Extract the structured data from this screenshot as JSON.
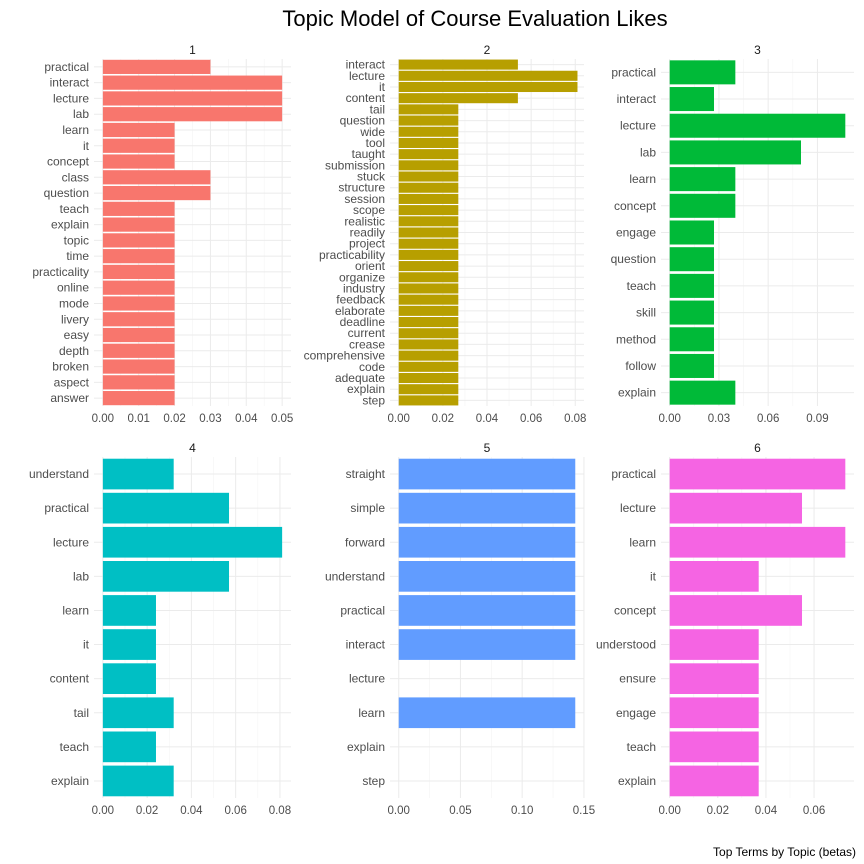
{
  "title": "Topic Model of Course Evaluation Likes",
  "caption": "Top Terms by Topic (betas)",
  "chart_data": {
    "type": "bar",
    "orientation": "horizontal",
    "facets": [
      {
        "label": "1",
        "color": "#F8766D",
        "xlim": [
          0,
          0.05
        ],
        "ticks": [
          0,
          0.01,
          0.02,
          0.03,
          0.04,
          0.05
        ],
        "tick_labels": [
          "0.00",
          "0.01",
          "0.02",
          "0.03",
          "0.04",
          "0.05"
        ],
        "terms": [
          "practical",
          "interact",
          "lecture",
          "lab",
          "learn",
          "it",
          "concept",
          "class",
          "question",
          "teach",
          "explain",
          "topic",
          "time",
          "practicality",
          "online",
          "mode",
          "livery",
          "easy",
          "depth",
          "broken",
          "aspect",
          "answer"
        ],
        "values": [
          0.03,
          0.05,
          0.05,
          0.05,
          0.02,
          0.02,
          0.02,
          0.03,
          0.03,
          0.02,
          0.02,
          0.02,
          0.02,
          0.02,
          0.02,
          0.02,
          0.02,
          0.02,
          0.02,
          0.02,
          0.02,
          0.02
        ]
      },
      {
        "label": "2",
        "color": "#B79F00",
        "xlim": [
          0,
          0.08
        ],
        "ticks": [
          0,
          0.02,
          0.04,
          0.06,
          0.08
        ],
        "tick_labels": [
          "0.00",
          "0.02",
          "0.04",
          "0.06",
          "0.08"
        ],
        "terms": [
          "interact",
          "lecture",
          "it",
          "content",
          "tail",
          "question",
          "wide",
          "tool",
          "taught",
          "submission",
          "stuck",
          "structure",
          "session",
          "scope",
          "realistic",
          "readily",
          "project",
          "practicability",
          "orient",
          "organize",
          "industry",
          "feedback",
          "elaborate",
          "deadline",
          "current",
          "crease",
          "comprehensive",
          "code",
          "adequate",
          "explain",
          "step"
        ],
        "values": [
          0.054,
          0.081,
          0.081,
          0.054,
          0.027,
          0.027,
          0.027,
          0.027,
          0.027,
          0.027,
          0.027,
          0.027,
          0.027,
          0.027,
          0.027,
          0.027,
          0.027,
          0.027,
          0.027,
          0.027,
          0.027,
          0.027,
          0.027,
          0.027,
          0.027,
          0.027,
          0.027,
          0.027,
          0.027,
          0.027,
          0.027
        ]
      },
      {
        "label": "3",
        "color": "#00BA38",
        "xlim": [
          0,
          0.107
        ],
        "ticks": [
          0,
          0.03,
          0.06,
          0.09
        ],
        "tick_labels": [
          "0.00",
          "0.03",
          "0.06",
          "0.09"
        ],
        "terms": [
          "practical",
          "interact",
          "lecture",
          "lab",
          "learn",
          "concept",
          "engage",
          "question",
          "teach",
          "skill",
          "method",
          "follow",
          "explain"
        ],
        "values": [
          0.04,
          0.027,
          0.107,
          0.08,
          0.04,
          0.04,
          0.027,
          0.027,
          0.027,
          0.027,
          0.027,
          0.027,
          0.04
        ]
      },
      {
        "label": "4",
        "color": "#00BFC4",
        "xlim": [
          0,
          0.081
        ],
        "ticks": [
          0,
          0.02,
          0.04,
          0.06,
          0.08
        ],
        "tick_labels": [
          "0.00",
          "0.02",
          "0.04",
          "0.06",
          "0.08"
        ],
        "terms": [
          "understand",
          "practical",
          "lecture",
          "lab",
          "learn",
          "it",
          "content",
          "tail",
          "teach",
          "explain"
        ],
        "values": [
          0.032,
          0.057,
          0.081,
          0.057,
          0.024,
          0.024,
          0.024,
          0.032,
          0.024,
          0.032
        ]
      },
      {
        "label": "5",
        "color": "#619CFF",
        "xlim": [
          0,
          0.143
        ],
        "ticks": [
          0,
          0.05,
          0.1,
          0.15
        ],
        "tick_labels": [
          "0.00",
          "0.05",
          "0.10",
          "0.15"
        ],
        "terms": [
          "straight",
          "simple",
          "forward",
          "understand",
          "practical",
          "interact",
          "lecture",
          "learn",
          "explain",
          "step"
        ],
        "values": [
          0.143,
          0.143,
          0.143,
          0.143,
          0.143,
          0.143,
          0,
          0.143,
          0,
          0
        ]
      },
      {
        "label": "6",
        "color": "#F564E3",
        "xlim": [
          0,
          0.073
        ],
        "ticks": [
          0,
          0.02,
          0.04,
          0.06
        ],
        "tick_labels": [
          "0.00",
          "0.02",
          "0.04",
          "0.06"
        ],
        "terms": [
          "practical",
          "lecture",
          "learn",
          "it",
          "concept",
          "understood",
          "ensure",
          "engage",
          "teach",
          "explain"
        ],
        "values": [
          0.073,
          0.055,
          0.073,
          0.037,
          0.055,
          0.037,
          0.037,
          0.037,
          0.037,
          0.037
        ]
      }
    ]
  }
}
